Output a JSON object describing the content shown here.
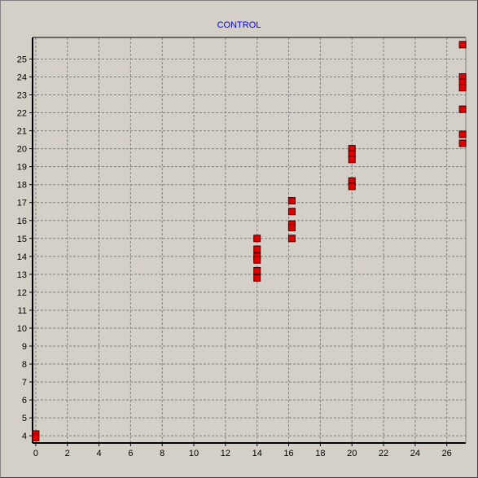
{
  "chart_data": {
    "type": "scatter",
    "title": "CONTROL",
    "xlabel": "",
    "ylabel": "",
    "xlim": [
      -0.2,
      27.2
    ],
    "ylim": [
      3.6,
      26.2
    ],
    "x_ticks": [
      0,
      2,
      4,
      6,
      8,
      10,
      12,
      14,
      16,
      18,
      20,
      22,
      24,
      26
    ],
    "y_ticks": [
      4,
      5,
      6,
      7,
      8,
      9,
      10,
      11,
      12,
      13,
      14,
      15,
      16,
      17,
      18,
      19,
      20,
      21,
      22,
      23,
      24,
      25
    ],
    "grid": true,
    "marker_color": "#e00000",
    "series": [
      {
        "x": [
          0,
          0,
          14,
          14,
          14,
          14,
          14,
          14,
          16.2,
          16.2,
          16.2,
          16.2,
          16.2,
          20,
          20,
          20,
          20,
          20,
          27,
          27,
          27,
          27,
          27,
          27,
          27
        ],
        "y": [
          4.1,
          3.9,
          15,
          14.4,
          14,
          13.8,
          13.2,
          12.8,
          17.1,
          16.5,
          15.8,
          15.6,
          15,
          20,
          19.7,
          19.4,
          18.2,
          17.9,
          25.8,
          24,
          23.7,
          23.4,
          22.2,
          20.8,
          20.3
        ]
      }
    ]
  }
}
